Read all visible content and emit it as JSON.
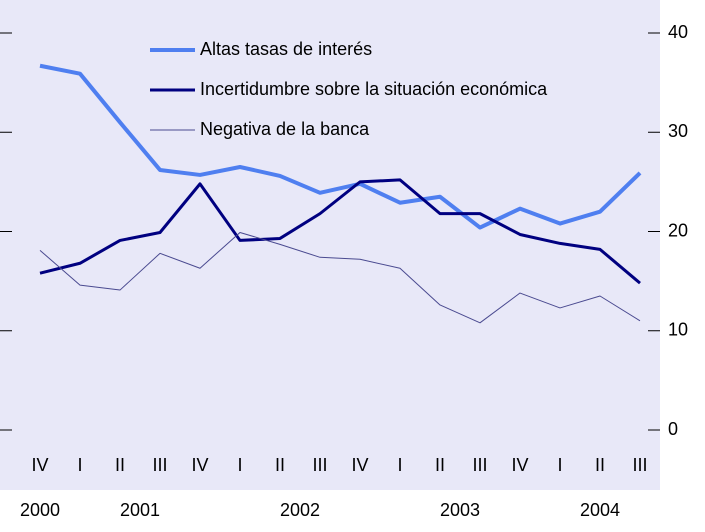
{
  "chart_data": {
    "type": "line",
    "categories": [
      "IV",
      "I",
      "II",
      "III",
      "IV",
      "I",
      "II",
      "III",
      "IV",
      "I",
      "II",
      "III",
      "IV",
      "I",
      "II",
      "III"
    ],
    "x_groups": [
      {
        "label": "2000",
        "quarters": 1
      },
      {
        "label": "2001",
        "quarters": 4
      },
      {
        "label": "2002",
        "quarters": 4
      },
      {
        "label": "2003",
        "quarters": 4
      },
      {
        "label": "2004",
        "quarters": 3
      }
    ],
    "series": [
      {
        "name": "Altas tasas de interés",
        "color": "#4f7ff0",
        "width": 4,
        "values": [
          36.7,
          35.9,
          31,
          26.2,
          25.7,
          26.5,
          25.6,
          23.9,
          24.8,
          22.9,
          23.5,
          20.4,
          22.3,
          20.8,
          22,
          25.9
        ]
      },
      {
        "name": "Incertidumbre sobre la situación económica",
        "color": "#000080",
        "width": 3,
        "values": [
          15.8,
          16.8,
          19.1,
          19.9,
          24.8,
          19.1,
          19.3,
          21.8,
          25,
          25.2,
          21.8,
          21.8,
          19.7,
          18.8,
          18.2,
          14.8
        ]
      },
      {
        "name": "Negativa de la banca",
        "color": "#4a4a90",
        "width": 1,
        "values": [
          18.1,
          14.6,
          14.1,
          17.8,
          16.3,
          19.9,
          18.7,
          17.4,
          17.2,
          16.3,
          12.6,
          10.8,
          13.8,
          12.3,
          13.5,
          11
        ]
      }
    ],
    "ylim": [
      0,
      40
    ],
    "yticks": [
      0,
      10,
      20,
      30,
      40
    ],
    "grid": false
  }
}
